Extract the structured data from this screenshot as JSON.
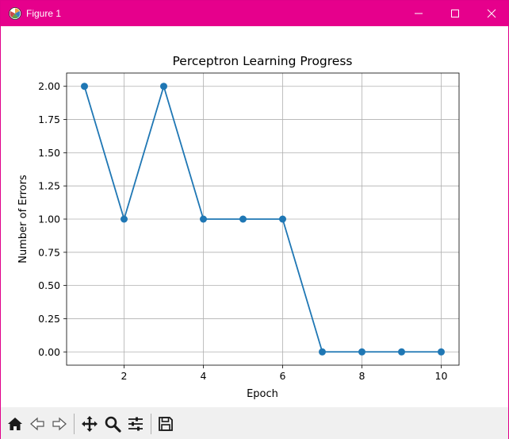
{
  "window": {
    "title": "Figure 1"
  },
  "toolbar": {
    "items": [
      {
        "name": "home-icon"
      },
      {
        "name": "back-arrow-icon"
      },
      {
        "name": "forward-arrow-icon"
      },
      {
        "name": "pan-icon"
      },
      {
        "name": "zoom-icon"
      },
      {
        "name": "configure-subplots-icon"
      },
      {
        "name": "save-icon"
      }
    ]
  },
  "colors": {
    "titlebar": "#e6008c",
    "series": "#1f77b4",
    "grid": "#b0b0b0",
    "toolbar_bg": "#f0f0f0"
  },
  "chart_data": {
    "type": "line",
    "title": "Perceptron Learning Progress",
    "xlabel": "Epoch",
    "ylabel": "Number of Errors",
    "x": [
      1,
      2,
      3,
      4,
      5,
      6,
      7,
      8,
      9,
      10
    ],
    "series": [
      {
        "values": [
          2,
          1,
          2,
          1,
          1,
          1,
          0,
          0,
          0,
          0
        ],
        "marker": "circle"
      }
    ],
    "xlim": [
      0.55,
      10.45
    ],
    "ylim": [
      -0.1,
      2.1
    ],
    "xticks": [
      2,
      4,
      6,
      8,
      10
    ],
    "xtick_labels": [
      "2",
      "4",
      "6",
      "8",
      "10"
    ],
    "yticks": [
      0,
      0.25,
      0.5,
      0.75,
      1.0,
      1.25,
      1.5,
      1.75,
      2.0
    ],
    "ytick_labels": [
      "0.00",
      "0.25",
      "0.50",
      "0.75",
      "1.00",
      "1.25",
      "1.50",
      "1.75",
      "2.00"
    ],
    "grid": true,
    "legend": false
  }
}
